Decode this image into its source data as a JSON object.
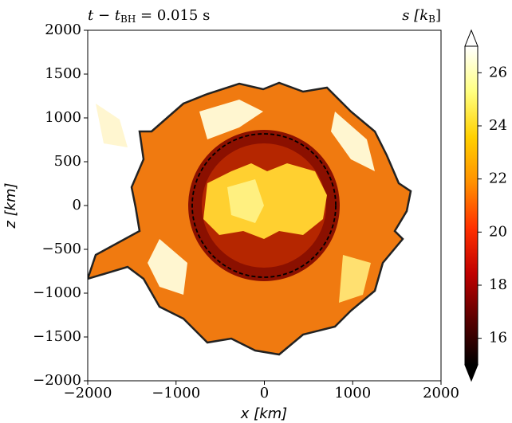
{
  "chart_data": {
    "type": "heatmap",
    "title_left": {
      "main": "t − t",
      "sub": "BH",
      "rest": " = 0.015 s"
    },
    "title_right": {
      "main": "s [k",
      "sub": "B",
      "rest": "]"
    },
    "x_label": "x [km]",
    "y_label": "z [km]",
    "xlim": [
      -2000,
      2000
    ],
    "ylim": [
      -2000,
      2000
    ],
    "xticks": [
      {
        "value": -2000,
        "label": "−2000"
      },
      {
        "value": -1000,
        "label": "−1000"
      },
      0,
      1000,
      2000
    ],
    "yticks": [
      {
        "value": -2000,
        "label": "−2000"
      },
      {
        "value": -1500,
        "label": "−1500"
      },
      {
        "value": -1000,
        "label": "−1000"
      },
      {
        "value": -500,
        "label": "−500"
      },
      0,
      500,
      1000,
      1500,
      2000
    ],
    "colorbar": {
      "clim": [
        15,
        27
      ],
      "ticks": [
        16,
        18,
        20,
        22,
        24,
        26
      ],
      "colormap": [
        "#000000",
        "#5a0000",
        "#c00000",
        "#ff3000",
        "#ff9000",
        "#ffd000",
        "#ffff80",
        "#ffffff"
      ]
    }
  }
}
